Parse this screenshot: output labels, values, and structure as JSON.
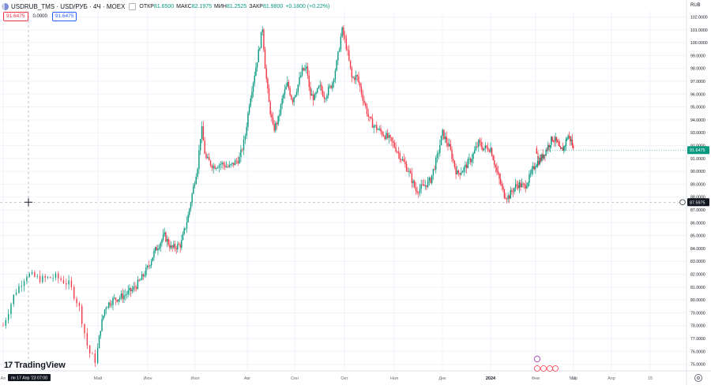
{
  "header": {
    "symbol_title": "USDRUB_TMS · USD/РУБ · 4Ч · MOEX",
    "open_label": "ОТКР",
    "open_value": "81.6500",
    "high_label": "МАКС",
    "high_value": "82.1975",
    "low_label": "МИН",
    "low_value": "81.2525",
    "close_label": "ЗАКР",
    "close_value": "81.9800",
    "change_value": "+0.1800 (+0.22%)",
    "sell_price": "91.6475",
    "spread": "0.0000",
    "buy_price": "91.6475",
    "currency": "RUB"
  },
  "crosshair": {
    "price_label": "87.5975",
    "time_label": "пн 17 Апр '23  07:00"
  },
  "brand": "TradingView",
  "colors": {
    "up": "#089981",
    "down": "#f23645",
    "grid": "#f0f3fa",
    "crosshair": "#9598a1",
    "last_price": "#089981"
  },
  "chart_data": {
    "type": "candlestick",
    "symbol": "USDRUB_TMS",
    "timeframe": "4Ч",
    "ylim": [
      74.6,
      102.4
    ],
    "y_ticks": [
      "75.0000",
      "76.0000",
      "77.0000",
      "78.0000",
      "79.0000",
      "80.0000",
      "81.0000",
      "82.0000",
      "83.0000",
      "84.0000",
      "85.0000",
      "86.0000",
      "87.0000",
      "88.0000",
      "89.0000",
      "90.0000",
      "91.0000",
      "92.0000",
      "93.0000",
      "94.0000",
      "95.0000",
      "96.0000",
      "97.0000",
      "98.0000",
      "99.0000",
      "100.0000",
      "101.0000",
      "102.0000"
    ],
    "x_ticks": [
      {
        "label": "Ап",
        "t": 0.0
      },
      {
        "label": "Май",
        "t": 1.0
      },
      {
        "label": "Июн",
        "t": 2.0
      },
      {
        "label": "Июл",
        "t": 3.0
      },
      {
        "label": "Авг",
        "t": 4.0
      },
      {
        "label": "Сен",
        "t": 5.0
      },
      {
        "label": "Окт",
        "t": 6.0
      },
      {
        "label": "Ноя",
        "t": 7.0
      },
      {
        "label": "Дек",
        "t": 8.0
      },
      {
        "label": "2024",
        "t": 9.0
      },
      {
        "label": "Фев",
        "t": 10.0
      },
      {
        "label": "Мар",
        "t": 11.0
      },
      {
        "label": "18",
        "t": 11.8
      },
      {
        "label": "Апр",
        "t": 12.6
      },
      {
        "label": "15",
        "t": 13.4
      }
    ],
    "last_price": "91.6475",
    "price_path": [
      [
        0.0,
        78.0
      ],
      [
        0.12,
        80.5
      ],
      [
        0.25,
        82.0
      ],
      [
        0.4,
        81.6
      ],
      [
        0.55,
        81.8
      ],
      [
        0.7,
        81.2
      ],
      [
        0.8,
        79.5
      ],
      [
        0.9,
        76.0
      ],
      [
        0.97,
        75.3
      ],
      [
        1.05,
        77.8
      ],
      [
        1.15,
        79.5
      ],
      [
        1.3,
        80.0
      ],
      [
        1.5,
        80.3
      ],
      [
        1.7,
        80.8
      ],
      [
        1.85,
        81.5
      ],
      [
        2.0,
        82.5
      ],
      [
        2.15,
        83.8
      ],
      [
        2.35,
        85.0
      ],
      [
        2.5,
        84.0
      ],
      [
        2.7,
        84.3
      ],
      [
        2.85,
        86.5
      ],
      [
        2.95,
        88.5
      ],
      [
        3.05,
        90.5
      ],
      [
        3.12,
        93.5
      ],
      [
        3.2,
        91.0
      ],
      [
        3.35,
        90.4
      ],
      [
        3.5,
        90.6
      ],
      [
        3.65,
        90.3
      ],
      [
        3.85,
        91.0
      ],
      [
        3.95,
        92.5
      ],
      [
        4.05,
        95.5
      ],
      [
        4.15,
        97.5
      ],
      [
        4.25,
        99.5
      ],
      [
        4.32,
        101.2
      ],
      [
        4.38,
        98.0
      ],
      [
        4.45,
        95.5
      ],
      [
        4.55,
        93.2
      ],
      [
        4.65,
        94.0
      ],
      [
        4.75,
        95.8
      ],
      [
        4.85,
        96.8
      ],
      [
        4.95,
        95.5
      ],
      [
        5.05,
        96.5
      ],
      [
        5.15,
        97.8
      ],
      [
        5.25,
        98.0
      ],
      [
        5.3,
        96.0
      ],
      [
        5.4,
        95.7
      ],
      [
        5.5,
        96.6
      ],
      [
        5.6,
        95.8
      ],
      [
        5.75,
        96.8
      ],
      [
        5.85,
        98.5
      ],
      [
        5.95,
        101.0
      ],
      [
        6.02,
        100.0
      ],
      [
        6.05,
        99.5
      ],
      [
        6.15,
        97.2
      ],
      [
        6.25,
        97.4
      ],
      [
        6.35,
        96.0
      ],
      [
        6.5,
        94.0
      ],
      [
        6.6,
        93.5
      ],
      [
        6.75,
        93.0
      ],
      [
        6.9,
        92.5
      ],
      [
        7.0,
        92.0
      ],
      [
        7.15,
        91.0
      ],
      [
        7.3,
        90.0
      ],
      [
        7.45,
        88.5
      ],
      [
        7.6,
        88.8
      ],
      [
        7.75,
        89.3
      ],
      [
        7.9,
        91.2
      ],
      [
        8.0,
        93.0
      ],
      [
        8.15,
        91.8
      ],
      [
        8.3,
        89.8
      ],
      [
        8.45,
        90.2
      ],
      [
        8.6,
        91.0
      ],
      [
        8.75,
        92.2
      ],
      [
        8.85,
        91.8
      ],
      [
        9.0,
        91.8
      ],
      [
        9.15,
        89.8
      ],
      [
        9.3,
        88.2
      ],
      [
        9.4,
        88.0
      ],
      [
        9.5,
        88.6
      ],
      [
        9.6,
        89.0
      ],
      [
        9.75,
        88.8
      ],
      [
        9.85,
        89.4
      ],
      [
        10.0,
        90.6
      ],
      [
        10.15,
        91.0
      ],
      [
        10.3,
        91.8
      ],
      [
        10.45,
        92.6
      ],
      [
        10.55,
        92.3
      ],
      [
        10.65,
        91.5
      ],
      [
        10.75,
        91.9
      ],
      [
        10.85,
        92.8
      ],
      [
        10.95,
        92.3
      ],
      [
        11.0,
        91.6
      ],
      [
        11.05,
        91.6
      ]
    ]
  }
}
